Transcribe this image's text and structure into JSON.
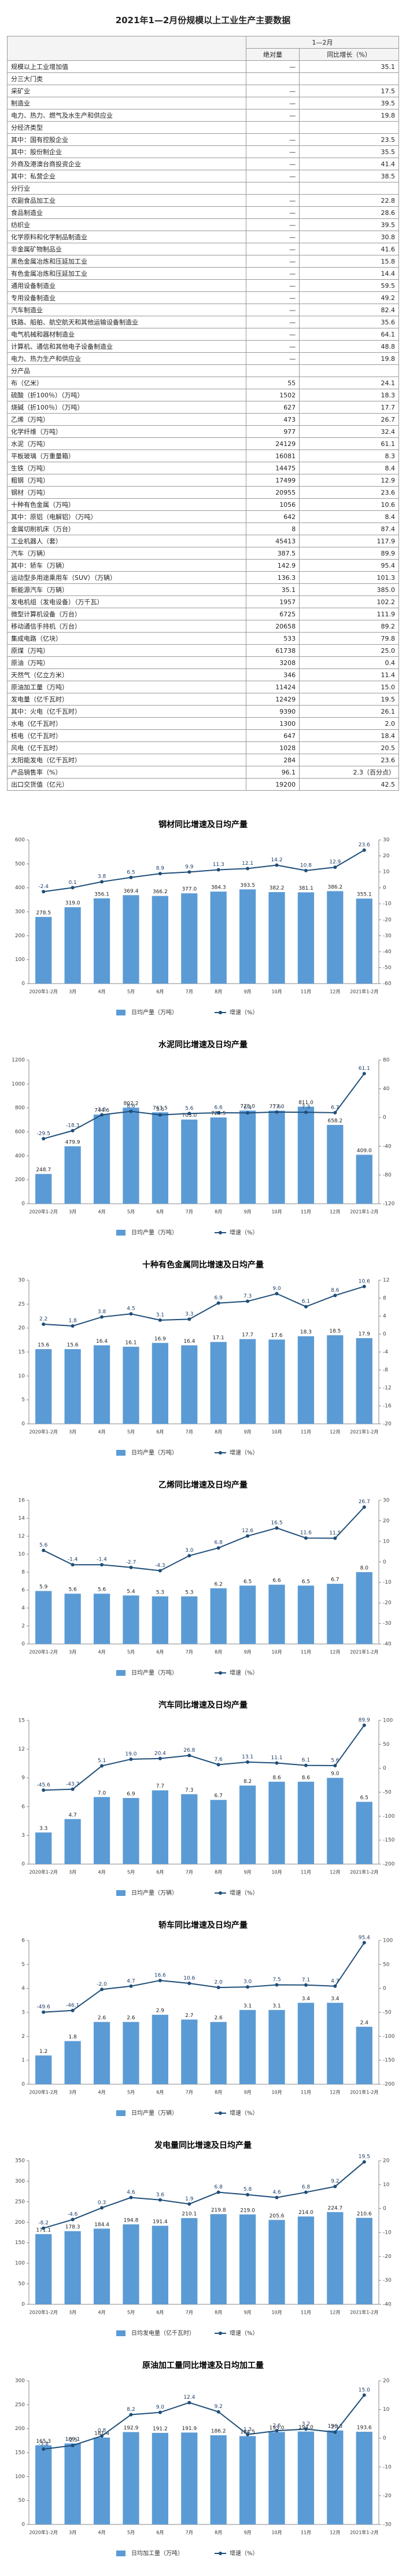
{
  "title": "2021年1—2月份规模以上工业生产主要数据",
  "table": {
    "header": [
      "1—2月",
      "绝对量",
      "同比增长（%）"
    ],
    "rows": [
      [
        "规模以上工业增加值",
        "—",
        "35.1"
      ],
      [
        "分三大门类"
      ],
      [
        "采矿业",
        "—",
        "17.5"
      ],
      [
        "制造业",
        "—",
        "39.5"
      ],
      [
        "电力、热力、燃气及水生产和供应业",
        "—",
        "19.8"
      ],
      [
        "分经济类型"
      ],
      [
        "其中：国有控股企业",
        "—",
        "23.5"
      ],
      [
        "其中：股份制企业",
        "—",
        "35.5"
      ],
      [
        "外商及港澳台商投资企业",
        "—",
        "41.4"
      ],
      [
        "其中：私营企业",
        "—",
        "38.5"
      ],
      [
        "分行业"
      ],
      [
        "农副食品加工业",
        "—",
        "22.8"
      ],
      [
        "食品制造业",
        "—",
        "28.6"
      ],
      [
        "纺织业",
        "—",
        "39.5"
      ],
      [
        "化学原料和化学制品制造业",
        "—",
        "30.8"
      ],
      [
        "非金属矿物制品业",
        "—",
        "41.6"
      ],
      [
        "黑色金属冶炼和压延加工业",
        "—",
        "15.8"
      ],
      [
        "有色金属冶炼和压延加工业",
        "—",
        "14.4"
      ],
      [
        "通用设备制造业",
        "—",
        "59.5"
      ],
      [
        "专用设备制造业",
        "—",
        "49.2"
      ],
      [
        "汽车制造业",
        "—",
        "82.4"
      ],
      [
        "铁路、船舶、航空航天和其他运输设备制造业",
        "—",
        "35.6"
      ],
      [
        "电气机械和器材制造业",
        "—",
        "64.1"
      ],
      [
        "计算机、通信和其他电子设备制造业",
        "—",
        "48.8"
      ],
      [
        "电力、热力生产和供应业",
        "—",
        "19.8"
      ],
      [
        "分产品"
      ],
      [
        "布（亿米）",
        "55",
        "24.1"
      ],
      [
        "硫酸（折100％）（万吨）",
        "1502",
        "18.3"
      ],
      [
        "烧碱（折100％）（万吨）",
        "627",
        "17.7"
      ],
      [
        "乙烯（万吨）",
        "473",
        "26.7"
      ],
      [
        "化学纤维（万吨）",
        "977",
        "32.4"
      ],
      [
        "水泥（万吨）",
        "24129",
        "61.1"
      ],
      [
        "平板玻璃（万重量箱）",
        "16081",
        "8.3"
      ],
      [
        "生铁（万吨）",
        "14475",
        "8.4"
      ],
      [
        "粗钢（万吨）",
        "17499",
        "12.9"
      ],
      [
        "钢材（万吨）",
        "20955",
        "23.6"
      ],
      [
        "十种有色金属（万吨）",
        "1056",
        "10.6"
      ],
      [
        "其中：原铝（电解铝）（万吨）",
        "642",
        "8.4"
      ],
      [
        "金属切削机床（万台）",
        "8",
        "87.4"
      ],
      [
        "工业机器人（套）",
        "45413",
        "117.9"
      ],
      [
        "汽车（万辆）",
        "387.5",
        "89.9"
      ],
      [
        "其中：轿车（万辆）",
        "142.9",
        "95.4"
      ],
      [
        "运动型多用途乘用车（SUV）（万辆）",
        "136.3",
        "101.3"
      ],
      [
        "新能源汽车（万辆）",
        "35.1",
        "385.0"
      ],
      [
        "发电机组（发电设备）（万千瓦）",
        "1957",
        "102.2"
      ],
      [
        "微型计算机设备（万台）",
        "6725",
        "111.9"
      ],
      [
        "移动通信手持机（万台）",
        "20658",
        "89.2"
      ],
      [
        "集成电路（亿块）",
        "533",
        "79.8"
      ],
      [
        "原煤（万吨）",
        "61738",
        "25.0"
      ],
      [
        "原油（万吨）",
        "3208",
        "0.4"
      ],
      [
        "天然气（亿立方米）",
        "346",
        "11.4"
      ],
      [
        "原油加工量（万吨）",
        "11424",
        "15.0"
      ],
      [
        "发电量（亿千瓦时）",
        "12429",
        "19.5"
      ],
      [
        "其中：火电（亿千瓦时）",
        "9390",
        "26.1"
      ],
      [
        "水电（亿千瓦时）",
        "1300",
        "2.0"
      ],
      [
        "核电（亿千瓦时）",
        "647",
        "18.4"
      ],
      [
        "风电（亿千瓦时）",
        "1028",
        "20.5"
      ],
      [
        "太阳能发电（亿千瓦时）",
        "284",
        "23.6"
      ],
      [
        "产品销售率（%）",
        "96.1",
        "2.3（百分点）"
      ],
      [
        "出口交货值（亿元）",
        "19200",
        "42.5"
      ]
    ]
  },
  "chart_data": [
    {
      "type": "combo",
      "title": "钢材同比增速及日均产量",
      "categories": [
        "2020年1-2月",
        "3月",
        "4月",
        "5月",
        "6月",
        "7月",
        "8月",
        "9月",
        "10月",
        "11月",
        "12月",
        "2021年1-2月"
      ],
      "series": [
        {
          "name": "日均产量（万吨）",
          "type": "bar",
          "color": "#5b9bd5",
          "values": [
            278.5,
            319.0,
            356.1,
            369.4,
            366.2,
            377.0,
            384.3,
            393.5,
            382.2,
            381.1,
            386.2,
            355.1
          ],
          "value_labels": [
            "278.5",
            "319.0",
            "356.1",
            "369.4",
            "366.2",
            "377.0",
            "384.3",
            "393.5",
            "382.2",
            "381.1",
            "386.2",
            "355.1"
          ]
        },
        {
          "name": "增速（%）",
          "type": "line",
          "axis": "y2",
          "color": "#1f4e79",
          "values": [
            -2.4,
            0.1,
            3.8,
            6.5,
            8.9,
            9.9,
            11.3,
            12.1,
            14.2,
            10.8,
            12.9,
            23.6
          ],
          "value_labels": [
            "-2.4",
            "0.1",
            "3.8",
            "6.5",
            "8.9",
            "9.9",
            "11.3",
            "12.1",
            "14.2",
            "10.8",
            "12.9",
            "23.6"
          ]
        }
      ],
      "ylim": [
        0,
        600
      ],
      "yticks": [
        0,
        100,
        200,
        300,
        400,
        500,
        600
      ],
      "y2lim": [
        -60,
        30
      ],
      "y2ticks": [
        -60,
        -50,
        -40,
        -30,
        -20,
        -10,
        0,
        10,
        20,
        30
      ]
    },
    {
      "type": "combo",
      "title": "水泥同比增速及日均产量",
      "categories": [
        "2020年1-2月",
        "3月",
        "4月",
        "5月",
        "6月",
        "7月",
        "8月",
        "9月",
        "10月",
        "11月",
        "12月",
        "2021年1-2月"
      ],
      "series": [
        {
          "name": "日均产量（万吨）",
          "type": "bar",
          "color": "#5b9bd5",
          "values": [
            248.7,
            479.9,
            744.6,
            802.2,
            763.5,
            703.0,
            720.5,
            778.0,
            777.0,
            811.0,
            658.2,
            409.0
          ],
          "value_labels": [
            "248.7",
            "479.9",
            "744.6",
            "802.2",
            "763.5",
            "703.0",
            "720.5",
            "778.0",
            "777.0",
            "811.0",
            "658.2",
            "409.0"
          ]
        },
        {
          "name": "增速（%）",
          "type": "line",
          "axis": "y2",
          "color": "#1f4e79",
          "values": [
            -29.5,
            -18.3,
            3.8,
            8.6,
            3.6,
            5.6,
            6.6,
            6.4,
            7.6,
            7.3,
            6.7,
            61.1
          ],
          "value_labels": [
            "-29.5",
            "-18.3",
            "3.8",
            "8.6",
            "3.6",
            "5.6",
            "6.6",
            "6.4",
            "7.6",
            "7.3",
            "6.7",
            "61.1"
          ]
        }
      ],
      "ylim": [
        0,
        1200
      ],
      "yticks": [
        0,
        200,
        400,
        600,
        800,
        1000,
        1200
      ],
      "y2lim": [
        -120,
        80
      ],
      "y2ticks": [
        -120,
        -80,
        -40,
        0,
        40,
        80
      ]
    },
    {
      "type": "combo",
      "title": "十种有色金属同比增速及日均产量",
      "categories": [
        "2020年1-2月",
        "3月",
        "4月",
        "5月",
        "6月",
        "7月",
        "8月",
        "9月",
        "10月",
        "11月",
        "12月",
        "2021年1-2月"
      ],
      "series": [
        {
          "name": "日均产量（万吨）",
          "type": "bar",
          "color": "#5b9bd5",
          "values": [
            15.6,
            15.6,
            16.4,
            16.1,
            16.9,
            16.4,
            17.1,
            17.7,
            17.6,
            18.3,
            18.5,
            17.9
          ],
          "value_labels": [
            "15.6",
            "15.6",
            "16.4",
            "16.1",
            "16.9",
            "16.4",
            "17.1",
            "17.7",
            "17.6",
            "18.3",
            "18.5",
            "17.9"
          ]
        },
        {
          "name": "增速（%）",
          "type": "line",
          "axis": "y2",
          "color": "#1f4e79",
          "values": [
            2.2,
            1.8,
            3.8,
            4.5,
            3.1,
            3.3,
            6.9,
            7.3,
            9.0,
            6.1,
            8.6,
            10.6
          ],
          "value_labels": [
            "2.2",
            "1.8",
            "3.8",
            "4.5",
            "3.1",
            "3.3",
            "6.9",
            "7.3",
            "9.0",
            "6.1",
            "8.6",
            "10.6"
          ]
        }
      ],
      "ylim": [
        0,
        30
      ],
      "yticks": [
        0,
        5,
        10,
        15,
        20,
        25,
        30
      ],
      "y2lim": [
        -20,
        12
      ],
      "y2ticks": [
        -20,
        -16,
        -12,
        -8,
        -4,
        0,
        4,
        8,
        12
      ]
    },
    {
      "type": "combo",
      "title": "乙烯同比增速及日均产量",
      "categories": [
        "2020年1-2月",
        "3月",
        "4月",
        "5月",
        "6月",
        "7月",
        "8月",
        "9月",
        "10月",
        "11月",
        "12月",
        "2021年1-2月"
      ],
      "series": [
        {
          "name": "日均产量（万吨）",
          "type": "bar",
          "color": "#5b9bd5",
          "values": [
            5.9,
            5.6,
            5.6,
            5.4,
            5.3,
            5.3,
            6.2,
            6.5,
            6.6,
            6.5,
            6.7,
            8.0
          ],
          "value_labels": [
            "5.9",
            "5.6",
            "5.6",
            "5.4",
            "5.3",
            "5.3",
            "6.2",
            "6.5",
            "6.6",
            "6.5",
            "6.7",
            "8.0"
          ]
        },
        {
          "name": "增速（%）",
          "type": "line",
          "axis": "y2",
          "color": "#1f4e79",
          "values": [
            5.6,
            -1.4,
            -1.4,
            -2.7,
            -4.3,
            3.0,
            6.8,
            12.6,
            16.5,
            11.6,
            11.5,
            26.7
          ],
          "value_labels": [
            "5.6",
            "-1.4",
            "-1.4",
            "-2.7",
            "-4.3",
            "3.0",
            "6.8",
            "12.6",
            "16.5",
            "11.6",
            "11.5",
            "26.7"
          ]
        }
      ],
      "ylim": [
        0,
        16
      ],
      "yticks": [
        0,
        2,
        4,
        6,
        8,
        10,
        12,
        14,
        16
      ],
      "y2lim": [
        -40,
        30
      ],
      "y2ticks": [
        -40,
        -30,
        -20,
        -10,
        0,
        10,
        20,
        30
      ]
    },
    {
      "type": "combo",
      "title": "汽车同比增速及日均产量",
      "categories": [
        "2020年1-2月",
        "3月",
        "4月",
        "5月",
        "6月",
        "7月",
        "8月",
        "9月",
        "10月",
        "11月",
        "12月",
        "2021年1-2月"
      ],
      "series": [
        {
          "name": "日均产量（万辆）",
          "type": "bar",
          "color": "#5b9bd5",
          "values": [
            3.3,
            4.7,
            7.0,
            6.9,
            7.7,
            7.3,
            6.7,
            8.2,
            8.6,
            8.6,
            9.0,
            6.5
          ],
          "value_labels": [
            "3.3",
            "4.7",
            "7.0",
            "6.9",
            "7.7",
            "7.3",
            "6.7",
            "8.2",
            "8.6",
            "8.6",
            "9.0",
            "6.5"
          ]
        },
        {
          "name": "增速（%）",
          "type": "line",
          "axis": "y2",
          "color": "#1f4e79",
          "values": [
            -45.6,
            -43.7,
            5.1,
            19.0,
            20.4,
            26.8,
            7.6,
            13.1,
            11.1,
            6.1,
            5.6,
            89.9
          ],
          "value_labels": [
            "-45.6",
            "-43.7",
            "5.1",
            "19.0",
            "20.4",
            "26.8",
            "7.6",
            "13.1",
            "11.1",
            "6.1",
            "5.6",
            "89.9"
          ]
        }
      ],
      "ylim": [
        0,
        15
      ],
      "yticks": [
        0,
        3,
        6,
        9,
        12,
        15
      ],
      "y2lim": [
        -200,
        100
      ],
      "y2ticks": [
        -200,
        -150,
        -100,
        -50,
        0,
        50,
        100
      ]
    },
    {
      "type": "combo",
      "title": "轿车同比增速及日均产量",
      "categories": [
        "2020年1-2月",
        "3月",
        "4月",
        "5月",
        "6月",
        "7月",
        "8月",
        "9月",
        "10月",
        "11月",
        "12月",
        "2021年1-2月"
      ],
      "series": [
        {
          "name": "日均产量（万辆）",
          "type": "bar",
          "color": "#5b9bd5",
          "values": [
            1.2,
            1.8,
            2.6,
            2.6,
            2.9,
            2.7,
            2.6,
            3.1,
            3.1,
            3.4,
            3.4,
            2.4
          ],
          "value_labels": [
            "1.2",
            "1.8",
            "2.6",
            "2.6",
            "2.9",
            "2.7",
            "2.6",
            "3.1",
            "3.1",
            "3.4",
            "3.4",
            "2.4"
          ]
        },
        {
          "name": "增速（%）",
          "type": "line",
          "axis": "y2",
          "color": "#1f4e79",
          "values": [
            -49.6,
            -46.1,
            -2.0,
            4.7,
            16.6,
            10.6,
            2.0,
            3.0,
            7.5,
            7.1,
            4.7,
            95.4
          ],
          "value_labels": [
            "-49.6",
            "-46.1",
            "-2.0",
            "4.7",
            "16.6",
            "10.6",
            "2.0",
            "3.0",
            "7.5",
            "7.1",
            "4.7",
            "95.4"
          ]
        }
      ],
      "ylim": [
        0,
        6
      ],
      "yticks": [
        0,
        1,
        2,
        3,
        4,
        5,
        6
      ],
      "y2lim": [
        -200,
        100
      ],
      "y2ticks": [
        -200,
        -150,
        -100,
        -50,
        0,
        50,
        100
      ]
    },
    {
      "type": "combo",
      "title": "发电量同比增速及日均产量",
      "categories": [
        "2020年1-2月",
        "3月",
        "4月",
        "5月",
        "6月",
        "7月",
        "8月",
        "9月",
        "10月",
        "11月",
        "12月",
        "2021年1-2月"
      ],
      "series": [
        {
          "name": "日均发电量（亿千瓦时）",
          "type": "bar",
          "color": "#5b9bd5",
          "values": [
            171.1,
            178.3,
            184.4,
            194.8,
            191.4,
            210.1,
            219.8,
            219.0,
            205.6,
            214.0,
            224.7,
            210.6
          ],
          "value_labels": [
            "171.1",
            "178.3",
            "184.4",
            "194.8",
            "191.4",
            "210.1",
            "219.8",
            "219.0",
            "205.6",
            "214.0",
            "224.7",
            "210.6"
          ]
        },
        {
          "name": "增速（%）",
          "type": "line",
          "axis": "y2",
          "color": "#1f4e79",
          "values": [
            -8.2,
            -4.6,
            0.3,
            4.6,
            3.6,
            1.9,
            6.8,
            5.8,
            4.6,
            6.8,
            9.2,
            19.5
          ],
          "value_labels": [
            "-8.2",
            "-4.6",
            "0.3",
            "4.6",
            "3.6",
            "1.9",
            "6.8",
            "5.8",
            "4.6",
            "6.8",
            "9.2",
            "19.5"
          ]
        }
      ],
      "ylim": [
        0,
        350
      ],
      "yticks": [
        0,
        50,
        100,
        150,
        200,
        250,
        300,
        350
      ],
      "y2lim": [
        -40,
        20
      ],
      "y2ticks": [
        -40,
        -30,
        -20,
        -10,
        0,
        10,
        20
      ]
    },
    {
      "type": "combo",
      "title": "原油加工量同比增速及日均加工量",
      "categories": [
        "2020年1-2月",
        "3月",
        "4月",
        "5月",
        "6月",
        "7月",
        "8月",
        "9月",
        "10月",
        "11月",
        "12月",
        "2021年1-2月"
      ],
      "series": [
        {
          "name": "日均加工量（万吨）",
          "type": "bar",
          "color": "#5b9bd5",
          "values": [
            165.3,
            169.1,
            181.4,
            192.9,
            191.2,
            191.9,
            186.2,
            184.5,
            193.0,
            194.0,
            196.3,
            193.6
          ],
          "value_labels": [
            "165.3",
            "169.1",
            "181.4",
            "192.9",
            "191.2",
            "191.9",
            "186.2",
            "184.5",
            "193.0",
            "194.0",
            "196.3",
            "193.6"
          ]
        },
        {
          "name": "增速（%）",
          "type": "line",
          "axis": "y2",
          "color": "#1f4e79",
          "values": [
            -3.8,
            -2.5,
            0.8,
            8.2,
            9.0,
            12.4,
            9.2,
            1.3,
            2.6,
            3.2,
            2.1,
            15.0
          ],
          "value_labels": [
            "-3.8",
            "-2.5",
            "0.8",
            "8.2",
            "9.0",
            "12.4",
            "9.2",
            "1.3",
            "2.6",
            "3.2",
            "2.1",
            "15.0"
          ]
        }
      ],
      "ylim": [
        0,
        300
      ],
      "yticks": [
        0,
        50,
        100,
        150,
        200,
        250,
        300
      ],
      "y2lim": [
        -30,
        20
      ],
      "y2ticks": [
        -30,
        -20,
        -10,
        0,
        10,
        20
      ]
    }
  ]
}
